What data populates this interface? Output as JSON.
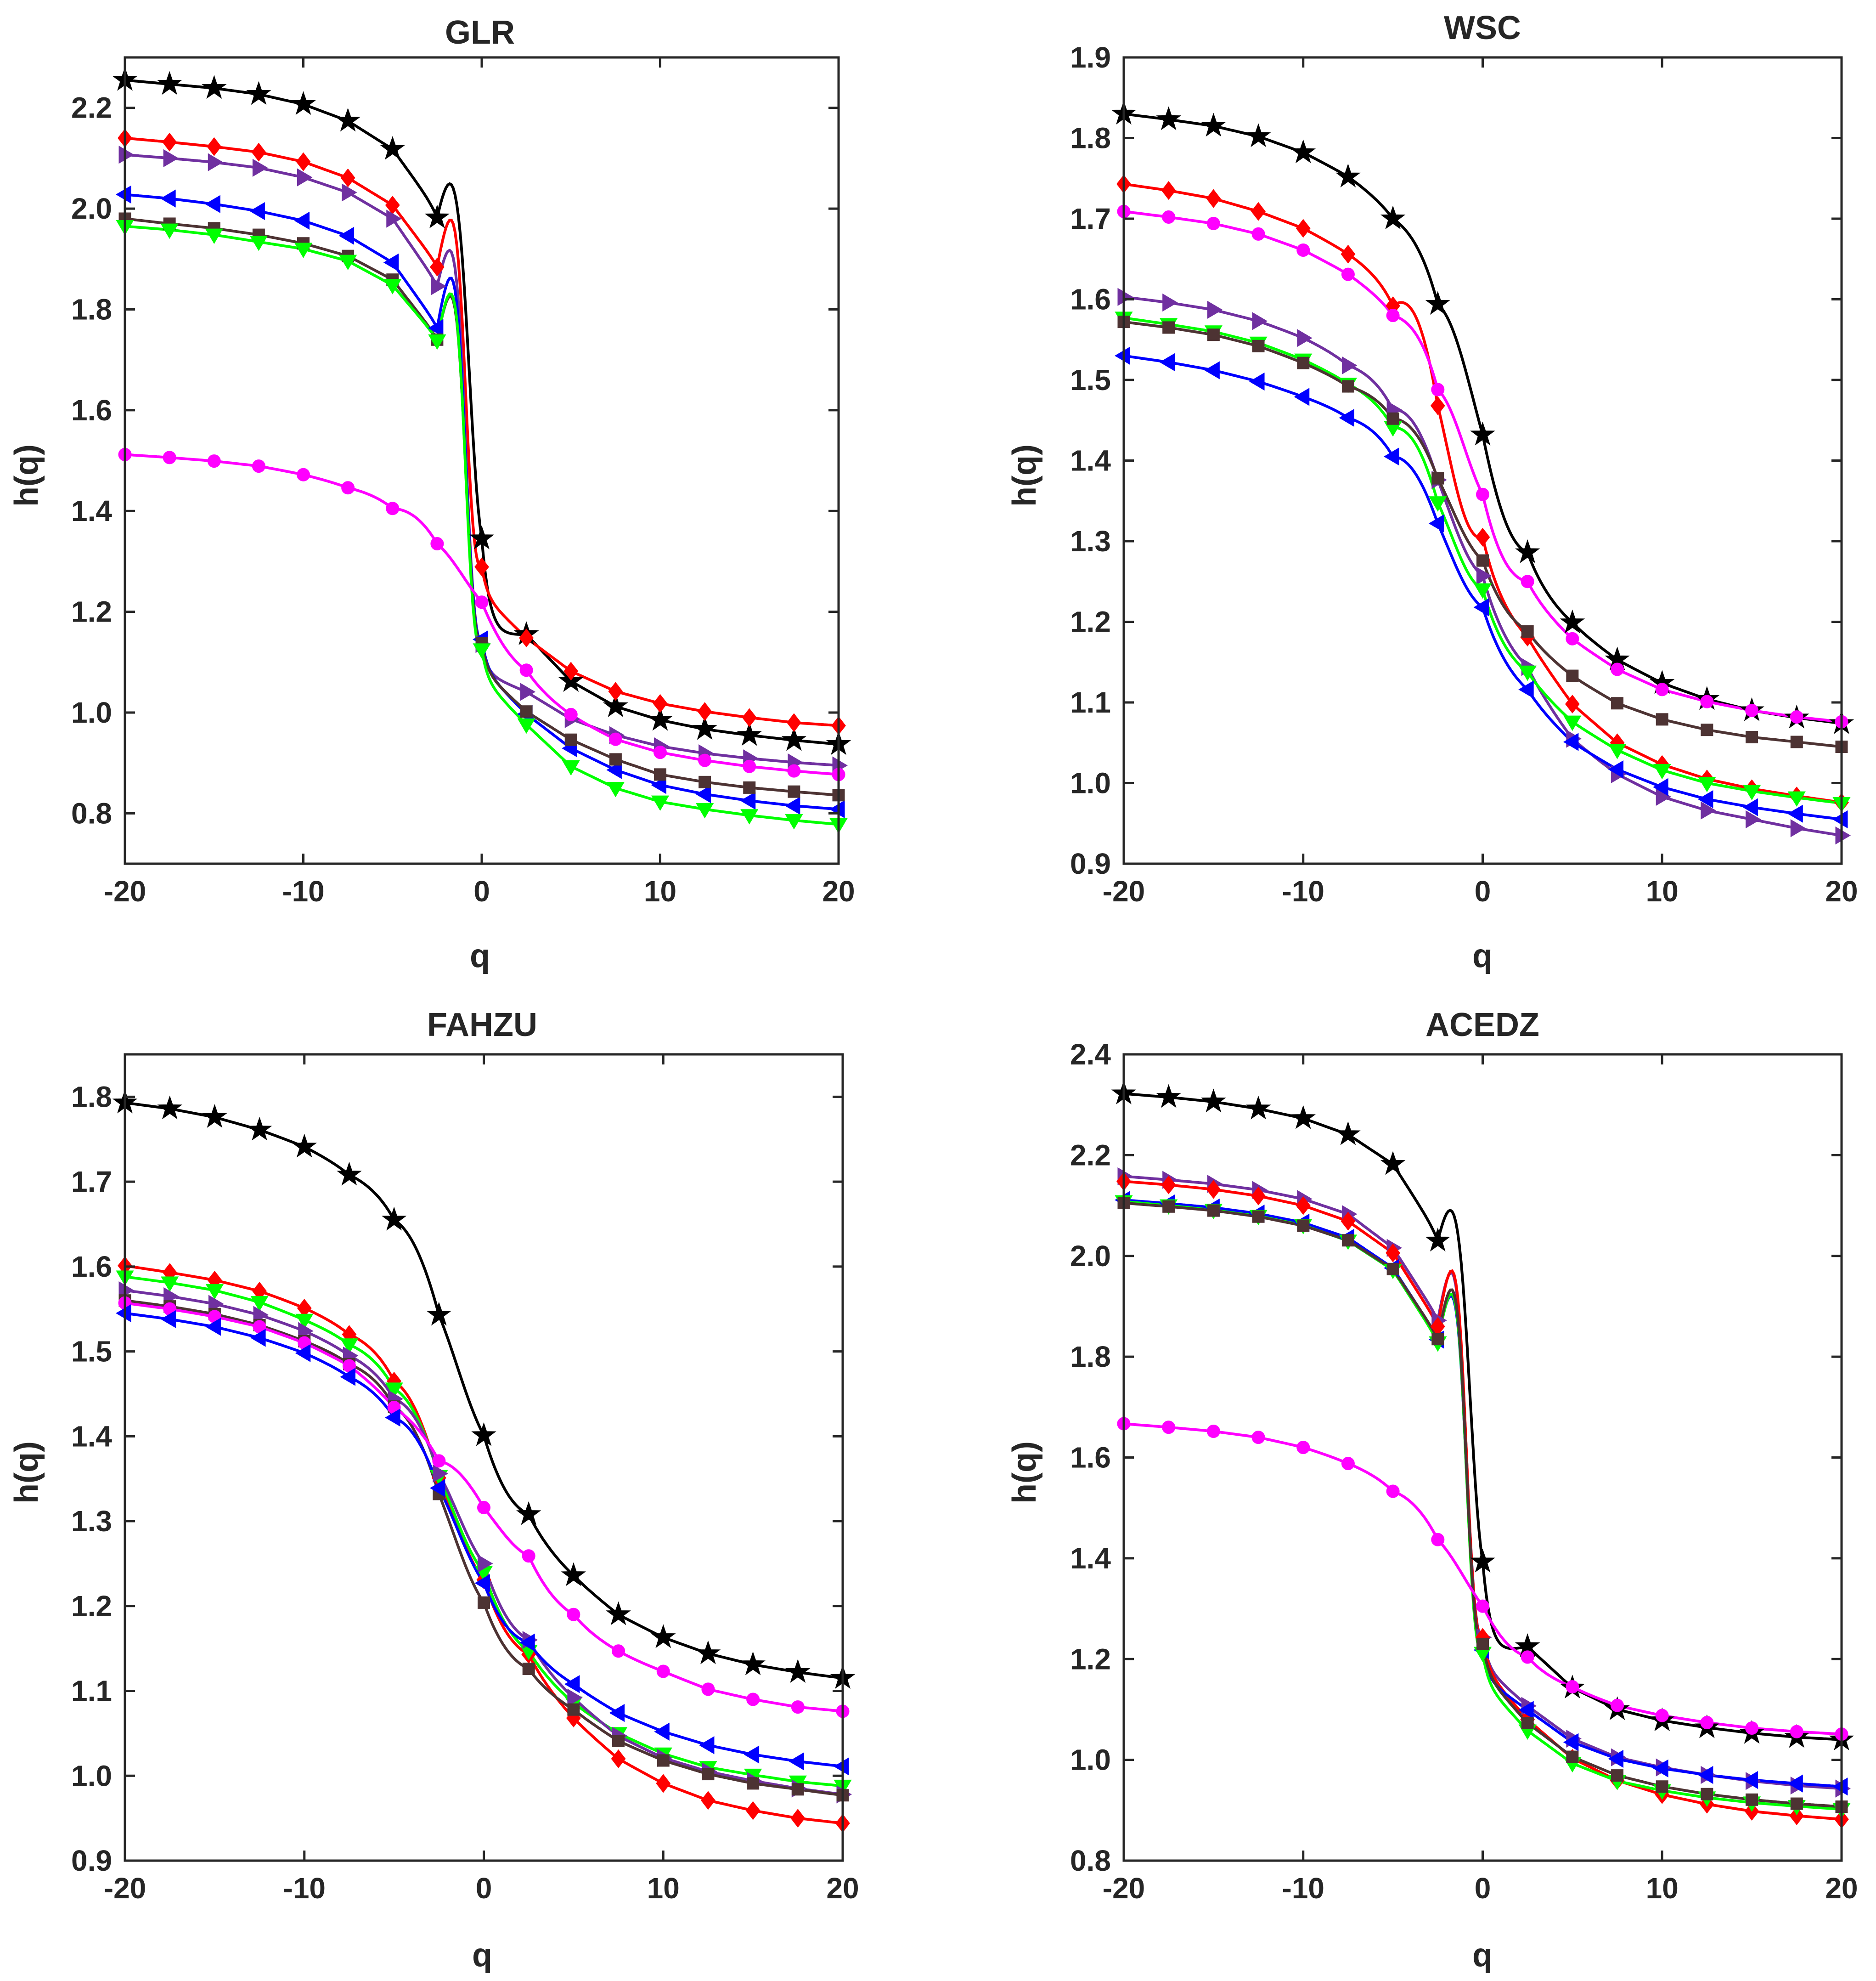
{
  "chart_data": [
    {
      "type": "line",
      "title": "GLR",
      "xlabel": "q",
      "ylabel": "h(q)",
      "xlim": [
        -20,
        20
      ],
      "ylim": [
        0.7,
        2.3
      ],
      "xticks": [
        -20,
        -10,
        0,
        10,
        20
      ],
      "yticks": [
        0.8,
        1.0,
        1.2,
        1.4,
        1.6,
        1.8,
        2.0,
        2.2
      ],
      "ytick_decimals": 1,
      "grid": false,
      "x": [
        -20,
        -17.5,
        -15,
        -12.5,
        -10,
        -7.5,
        -5,
        -2.5,
        0,
        2.5,
        5,
        7.5,
        10,
        12.5,
        15,
        17.5,
        20
      ],
      "series": [
        {
          "color": "#000000",
          "marker": "star",
          "center": -0.7,
          "width": 0.8,
          "values": [
            2.255,
            2.247,
            2.239,
            2.227,
            2.207,
            2.174,
            2.118,
            1.982,
            1.345,
            1.155,
            1.062,
            1.012,
            0.985,
            0.967,
            0.955,
            0.945,
            0.937
          ]
        },
        {
          "color": "#ff0000",
          "marker": "diamond",
          "center": -0.9,
          "width": 0.6,
          "values": [
            2.14,
            2.132,
            2.123,
            2.112,
            2.093,
            2.061,
            2.007,
            1.884,
            1.289,
            1.148,
            1.082,
            1.042,
            1.018,
            1.002,
            0.99,
            0.98,
            0.974
          ]
        },
        {
          "color": "#7030a0",
          "marker": "tri-right",
          "center": -0.9,
          "width": 0.6,
          "values": [
            2.107,
            2.1,
            2.092,
            2.081,
            2.062,
            2.032,
            1.98,
            1.846,
            1.136,
            1.041,
            0.987,
            0.955,
            0.933,
            0.919,
            0.909,
            0.901,
            0.895
          ]
        },
        {
          "color": "#0000ff",
          "marker": "tri-left",
          "center": -0.9,
          "width": 0.6,
          "values": [
            2.028,
            2.02,
            2.009,
            1.995,
            1.976,
            1.946,
            1.893,
            1.763,
            1.145,
            0.997,
            0.929,
            0.886,
            0.856,
            0.838,
            0.825,
            0.815,
            0.808
          ]
        },
        {
          "color": "#4d3333",
          "marker": "square",
          "center": -0.9,
          "width": 0.6,
          "values": [
            1.98,
            1.97,
            1.961,
            1.948,
            1.931,
            1.906,
            1.859,
            1.74,
            1.138,
            1.002,
            0.946,
            0.907,
            0.877,
            0.862,
            0.851,
            0.843,
            0.836
          ]
        },
        {
          "color": "#00ff00",
          "marker": "tri-down",
          "center": -0.9,
          "width": 0.6,
          "values": [
            1.965,
            1.958,
            1.948,
            1.934,
            1.92,
            1.896,
            1.848,
            1.738,
            1.125,
            0.976,
            0.893,
            0.85,
            0.823,
            0.808,
            0.796,
            0.786,
            0.778
          ]
        },
        {
          "color": "#ff00ff",
          "marker": "circle",
          "center": -1.0,
          "width": 3.0,
          "values": [
            1.512,
            1.506,
            1.499,
            1.489,
            1.472,
            1.446,
            1.405,
            1.335,
            1.219,
            1.084,
            0.996,
            0.947,
            0.921,
            0.905,
            0.893,
            0.884,
            0.877
          ]
        }
      ]
    },
    {
      "type": "line",
      "title": "WSC",
      "xlabel": "q",
      "ylabel": "h(q)",
      "xlim": [
        -20,
        20
      ],
      "ylim": [
        0.9,
        1.9
      ],
      "xticks": [
        -20,
        -10,
        0,
        10,
        20
      ],
      "yticks": [
        0.9,
        1.0,
        1.1,
        1.2,
        1.3,
        1.4,
        1.5,
        1.6,
        1.7,
        1.8,
        1.9
      ],
      "ytick_decimals": 1,
      "grid": false,
      "x": [
        -20,
        -17.5,
        -15,
        -12.5,
        -10,
        -7.5,
        -5,
        -2.5,
        0,
        2.5,
        5,
        7.5,
        10,
        12.5,
        15,
        17.5,
        20
      ],
      "series": [
        {
          "color": "#000000",
          "marker": "star",
          "center": -0.5,
          "width": 2.5,
          "values": [
            1.83,
            1.823,
            1.815,
            1.802,
            1.782,
            1.752,
            1.7,
            1.594,
            1.432,
            1.286,
            1.199,
            1.153,
            1.124,
            1.104,
            1.09,
            1.081,
            1.074
          ]
        },
        {
          "color": "#ff0000",
          "marker": "diamond",
          "center": -2.0,
          "width": 2.0,
          "values": [
            1.743,
            1.735,
            1.725,
            1.709,
            1.688,
            1.656,
            1.592,
            1.468,
            1.305,
            1.181,
            1.098,
            1.05,
            1.023,
            1.005,
            0.993,
            0.984,
            0.976
          ]
        },
        {
          "color": "#ff00ff",
          "marker": "circle",
          "center": -1.0,
          "width": 2.3,
          "values": [
            1.709,
            1.702,
            1.694,
            1.681,
            1.661,
            1.631,
            1.58,
            1.488,
            1.358,
            1.25,
            1.179,
            1.141,
            1.116,
            1.101,
            1.09,
            1.082,
            1.076
          ]
        },
        {
          "color": "#7030a0",
          "marker": "tri-right",
          "center": -2.0,
          "width": 2.8,
          "values": [
            1.603,
            1.596,
            1.587,
            1.573,
            1.552,
            1.518,
            1.463,
            1.376,
            1.257,
            1.144,
            1.055,
            1.011,
            0.983,
            0.966,
            0.955,
            0.944,
            0.935
          ]
        },
        {
          "color": "#00ff00",
          "marker": "tri-down",
          "center": -1.8,
          "width": 2.5,
          "values": [
            1.577,
            1.569,
            1.56,
            1.546,
            1.525,
            1.495,
            1.441,
            1.348,
            1.24,
            1.138,
            1.076,
            1.041,
            1.016,
            1.0,
            0.99,
            0.982,
            0.975
          ]
        },
        {
          "color": "#4d3333",
          "marker": "square",
          "center": -1.8,
          "width": 2.8,
          "values": [
            1.572,
            1.565,
            1.556,
            1.542,
            1.521,
            1.492,
            1.452,
            1.378,
            1.276,
            1.188,
            1.133,
            1.099,
            1.079,
            1.066,
            1.057,
            1.051,
            1.045
          ]
        },
        {
          "color": "#0000ff",
          "marker": "tri-left",
          "center": -2.0,
          "width": 2.8,
          "values": [
            1.53,
            1.522,
            1.512,
            1.498,
            1.479,
            1.453,
            1.405,
            1.322,
            1.218,
            1.116,
            1.051,
            1.017,
            0.995,
            0.98,
            0.97,
            0.962,
            0.955
          ]
        }
      ]
    },
    {
      "type": "line",
      "title": "FAHZU",
      "xlabel": "q",
      "ylabel": "h(q)",
      "xlim": [
        -20,
        20
      ],
      "ylim": [
        0.9,
        1.85
      ],
      "xticks": [
        -20,
        -10,
        0,
        10,
        20
      ],
      "yticks": [
        0.9,
        1.0,
        1.1,
        1.2,
        1.3,
        1.4,
        1.5,
        1.6,
        1.7,
        1.8
      ],
      "ytick_decimals": 1,
      "grid": false,
      "x": [
        -20,
        -17.5,
        -15,
        -12.5,
        -10,
        -7.5,
        -5,
        -2.5,
        0,
        2.5,
        5,
        7.5,
        10,
        12.5,
        15,
        17.5,
        20
      ],
      "series": [
        {
          "color": "#000000",
          "marker": "star",
          "center": -1.5,
          "width": 3.0,
          "values": [
            1.793,
            1.786,
            1.776,
            1.761,
            1.741,
            1.708,
            1.655,
            1.543,
            1.401,
            1.308,
            1.236,
            1.19,
            1.163,
            1.144,
            1.131,
            1.122,
            1.115
          ]
        },
        {
          "color": "#ff0000",
          "marker": "diamond",
          "center": -1.8,
          "width": 3.0,
          "values": [
            1.601,
            1.593,
            1.584,
            1.571,
            1.551,
            1.52,
            1.465,
            1.351,
            1.231,
            1.143,
            1.068,
            1.02,
            0.991,
            0.971,
            0.959,
            0.95,
            0.944
          ]
        },
        {
          "color": "#00ff00",
          "marker": "tri-down",
          "center": -1.8,
          "width": 3.0,
          "values": [
            1.588,
            1.581,
            1.572,
            1.558,
            1.537,
            1.508,
            1.456,
            1.353,
            1.24,
            1.147,
            1.086,
            1.05,
            1.026,
            1.01,
            1.001,
            0.993,
            0.988
          ]
        },
        {
          "color": "#7030a0",
          "marker": "tri-right",
          "center": -1.5,
          "width": 3.0,
          "values": [
            1.572,
            1.565,
            1.556,
            1.543,
            1.524,
            1.495,
            1.444,
            1.356,
            1.25,
            1.16,
            1.092,
            1.047,
            1.021,
            1.005,
            0.994,
            0.985,
            0.978
          ]
        },
        {
          "color": "#4d3333",
          "marker": "square",
          "center": -1.8,
          "width": 3.0,
          "values": [
            1.56,
            1.553,
            1.544,
            1.531,
            1.512,
            1.485,
            1.435,
            1.332,
            1.204,
            1.126,
            1.078,
            1.041,
            1.018,
            1.002,
            0.991,
            0.984,
            0.977
          ]
        },
        {
          "color": "#ff00ff",
          "marker": "circle",
          "center": 0.5,
          "width": 3.5,
          "values": [
            1.557,
            1.55,
            1.541,
            1.529,
            1.51,
            1.483,
            1.434,
            1.371,
            1.316,
            1.259,
            1.19,
            1.147,
            1.123,
            1.102,
            1.09,
            1.081,
            1.076
          ]
        },
        {
          "color": "#0000ff",
          "marker": "tri-left",
          "center": -1.5,
          "width": 3.0,
          "values": [
            1.545,
            1.538,
            1.529,
            1.516,
            1.498,
            1.47,
            1.422,
            1.339,
            1.227,
            1.157,
            1.108,
            1.074,
            1.052,
            1.036,
            1.025,
            1.017,
            1.011
          ]
        }
      ]
    },
    {
      "type": "line",
      "title": "ACEDZ",
      "xlabel": "q",
      "ylabel": "h(q)",
      "xlim": [
        -20,
        20
      ],
      "ylim": [
        0.8,
        2.4
      ],
      "xticks": [
        -20,
        -10,
        0,
        10,
        20
      ],
      "yticks": [
        0.8,
        1.0,
        1.2,
        1.4,
        1.6,
        1.8,
        2.0,
        2.2,
        2.4
      ],
      "ytick_decimals": 1,
      "grid": false,
      "x": [
        -20,
        -17.5,
        -15,
        -12.5,
        -10,
        -7.5,
        -5,
        -2.5,
        0,
        2.5,
        5,
        7.5,
        10,
        12.5,
        15,
        17.5,
        20
      ],
      "series": [
        {
          "color": "#000000",
          "marker": "star",
          "center": -0.7,
          "width": 0.8,
          "values": [
            2.322,
            2.315,
            2.306,
            2.292,
            2.273,
            2.241,
            2.182,
            2.03,
            1.393,
            1.225,
            1.143,
            1.1,
            1.078,
            1.064,
            1.053,
            1.045,
            1.04
          ]
        },
        {
          "color": "#7030a0",
          "marker": "tri-right",
          "center": -0.9,
          "width": 0.6,
          "values": [
            2.158,
            2.151,
            2.143,
            2.131,
            2.113,
            2.083,
            2.016,
            1.872,
            1.243,
            1.107,
            1.042,
            1.005,
            0.985,
            0.97,
            0.958,
            0.949,
            0.943
          ]
        },
        {
          "color": "#ff0000",
          "marker": "diamond",
          "center": -0.9,
          "width": 0.6,
          "values": [
            2.148,
            2.141,
            2.132,
            2.119,
            2.1,
            2.069,
            2.006,
            1.86,
            1.243,
            1.08,
            1.003,
            0.959,
            0.931,
            0.912,
            0.898,
            0.889,
            0.882
          ]
        },
        {
          "color": "#0000ff",
          "marker": "tri-left",
          "center": -0.9,
          "width": 0.6,
          "values": [
            2.111,
            2.104,
            2.096,
            2.084,
            2.066,
            2.036,
            1.976,
            1.834,
            1.218,
            1.099,
            1.035,
            1.002,
            0.983,
            0.97,
            0.96,
            0.953,
            0.947
          ]
        },
        {
          "color": "#00ff00",
          "marker": "tri-down",
          "center": -0.9,
          "width": 0.6,
          "values": [
            2.108,
            2.1,
            2.091,
            2.079,
            2.061,
            2.03,
            1.972,
            1.828,
            1.212,
            1.058,
            0.993,
            0.958,
            0.939,
            0.925,
            0.915,
            0.908,
            0.902
          ]
        },
        {
          "color": "#4d3333",
          "marker": "square",
          "center": -0.9,
          "width": 0.6,
          "values": [
            2.105,
            2.098,
            2.09,
            2.078,
            2.06,
            2.031,
            1.974,
            1.835,
            1.23,
            1.073,
            1.006,
            0.969,
            0.947,
            0.932,
            0.921,
            0.913,
            0.907
          ]
        },
        {
          "color": "#ff00ff",
          "marker": "circle",
          "center": -1.0,
          "width": 3.0,
          "values": [
            1.667,
            1.66,
            1.652,
            1.64,
            1.62,
            1.588,
            1.533,
            1.437,
            1.305,
            1.204,
            1.145,
            1.108,
            1.088,
            1.074,
            1.063,
            1.056,
            1.051
          ]
        }
      ]
    }
  ]
}
